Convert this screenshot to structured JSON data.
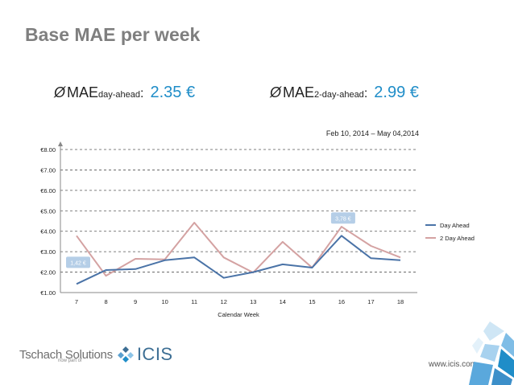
{
  "slide": {
    "title": "Base MAE per week",
    "mae_day_ahead": {
      "symbol": "Ø",
      "label": "MAE",
      "subscript": "day-ahead",
      "colon": ":",
      "value": "2.35 €"
    },
    "mae_two_day": {
      "symbol": "Ø",
      "label": "MAE",
      "subscript": "2-day-ahead",
      "colon": ":",
      "value": "2.99 €"
    },
    "date_range": "Feb 10, 2014 – May 04,2014"
  },
  "footer": {
    "company": "Tschach Solutions",
    "tagline": "now part of",
    "brand": "ICIS",
    "url": "www.icis.com"
  },
  "colors": {
    "day_ahead": "#4a73a7",
    "two_day_ahead": "#d4a2a2",
    "callout": "#a8c6e3",
    "title": "#7f7f7f",
    "accent": "#1f8dc8"
  },
  "chart_data": {
    "type": "line",
    "categories": [
      "7",
      "8",
      "9",
      "10",
      "11",
      "12",
      "13",
      "14",
      "15",
      "16",
      "17",
      "18"
    ],
    "xlabel": "Calendar Week",
    "ylabel": "",
    "ylim": [
      1,
      8
    ],
    "yticks": [
      "€1.00",
      "€2.00",
      "€3.00",
      "€4.00",
      "€5.00",
      "€6.00",
      "€7.00",
      "€8.00"
    ],
    "grid": "horizontal dashed",
    "legend_position": "right",
    "series": [
      {
        "name": "Day Ahead",
        "values": [
          1.42,
          2.1,
          2.15,
          2.58,
          2.72,
          1.72,
          2.0,
          2.38,
          2.22,
          3.78,
          2.68,
          2.58
        ]
      },
      {
        "name": "2 Day Ahead",
        "values": [
          3.78,
          1.82,
          2.65,
          2.62,
          4.42,
          2.72,
          1.98,
          3.48,
          2.22,
          4.22,
          3.28,
          2.72
        ]
      }
    ],
    "annotations": [
      {
        "label": "1,42 €",
        "category": "7",
        "value": 1.42
      },
      {
        "label": "3,78 €",
        "category": "16",
        "value": 3.78
      }
    ]
  }
}
